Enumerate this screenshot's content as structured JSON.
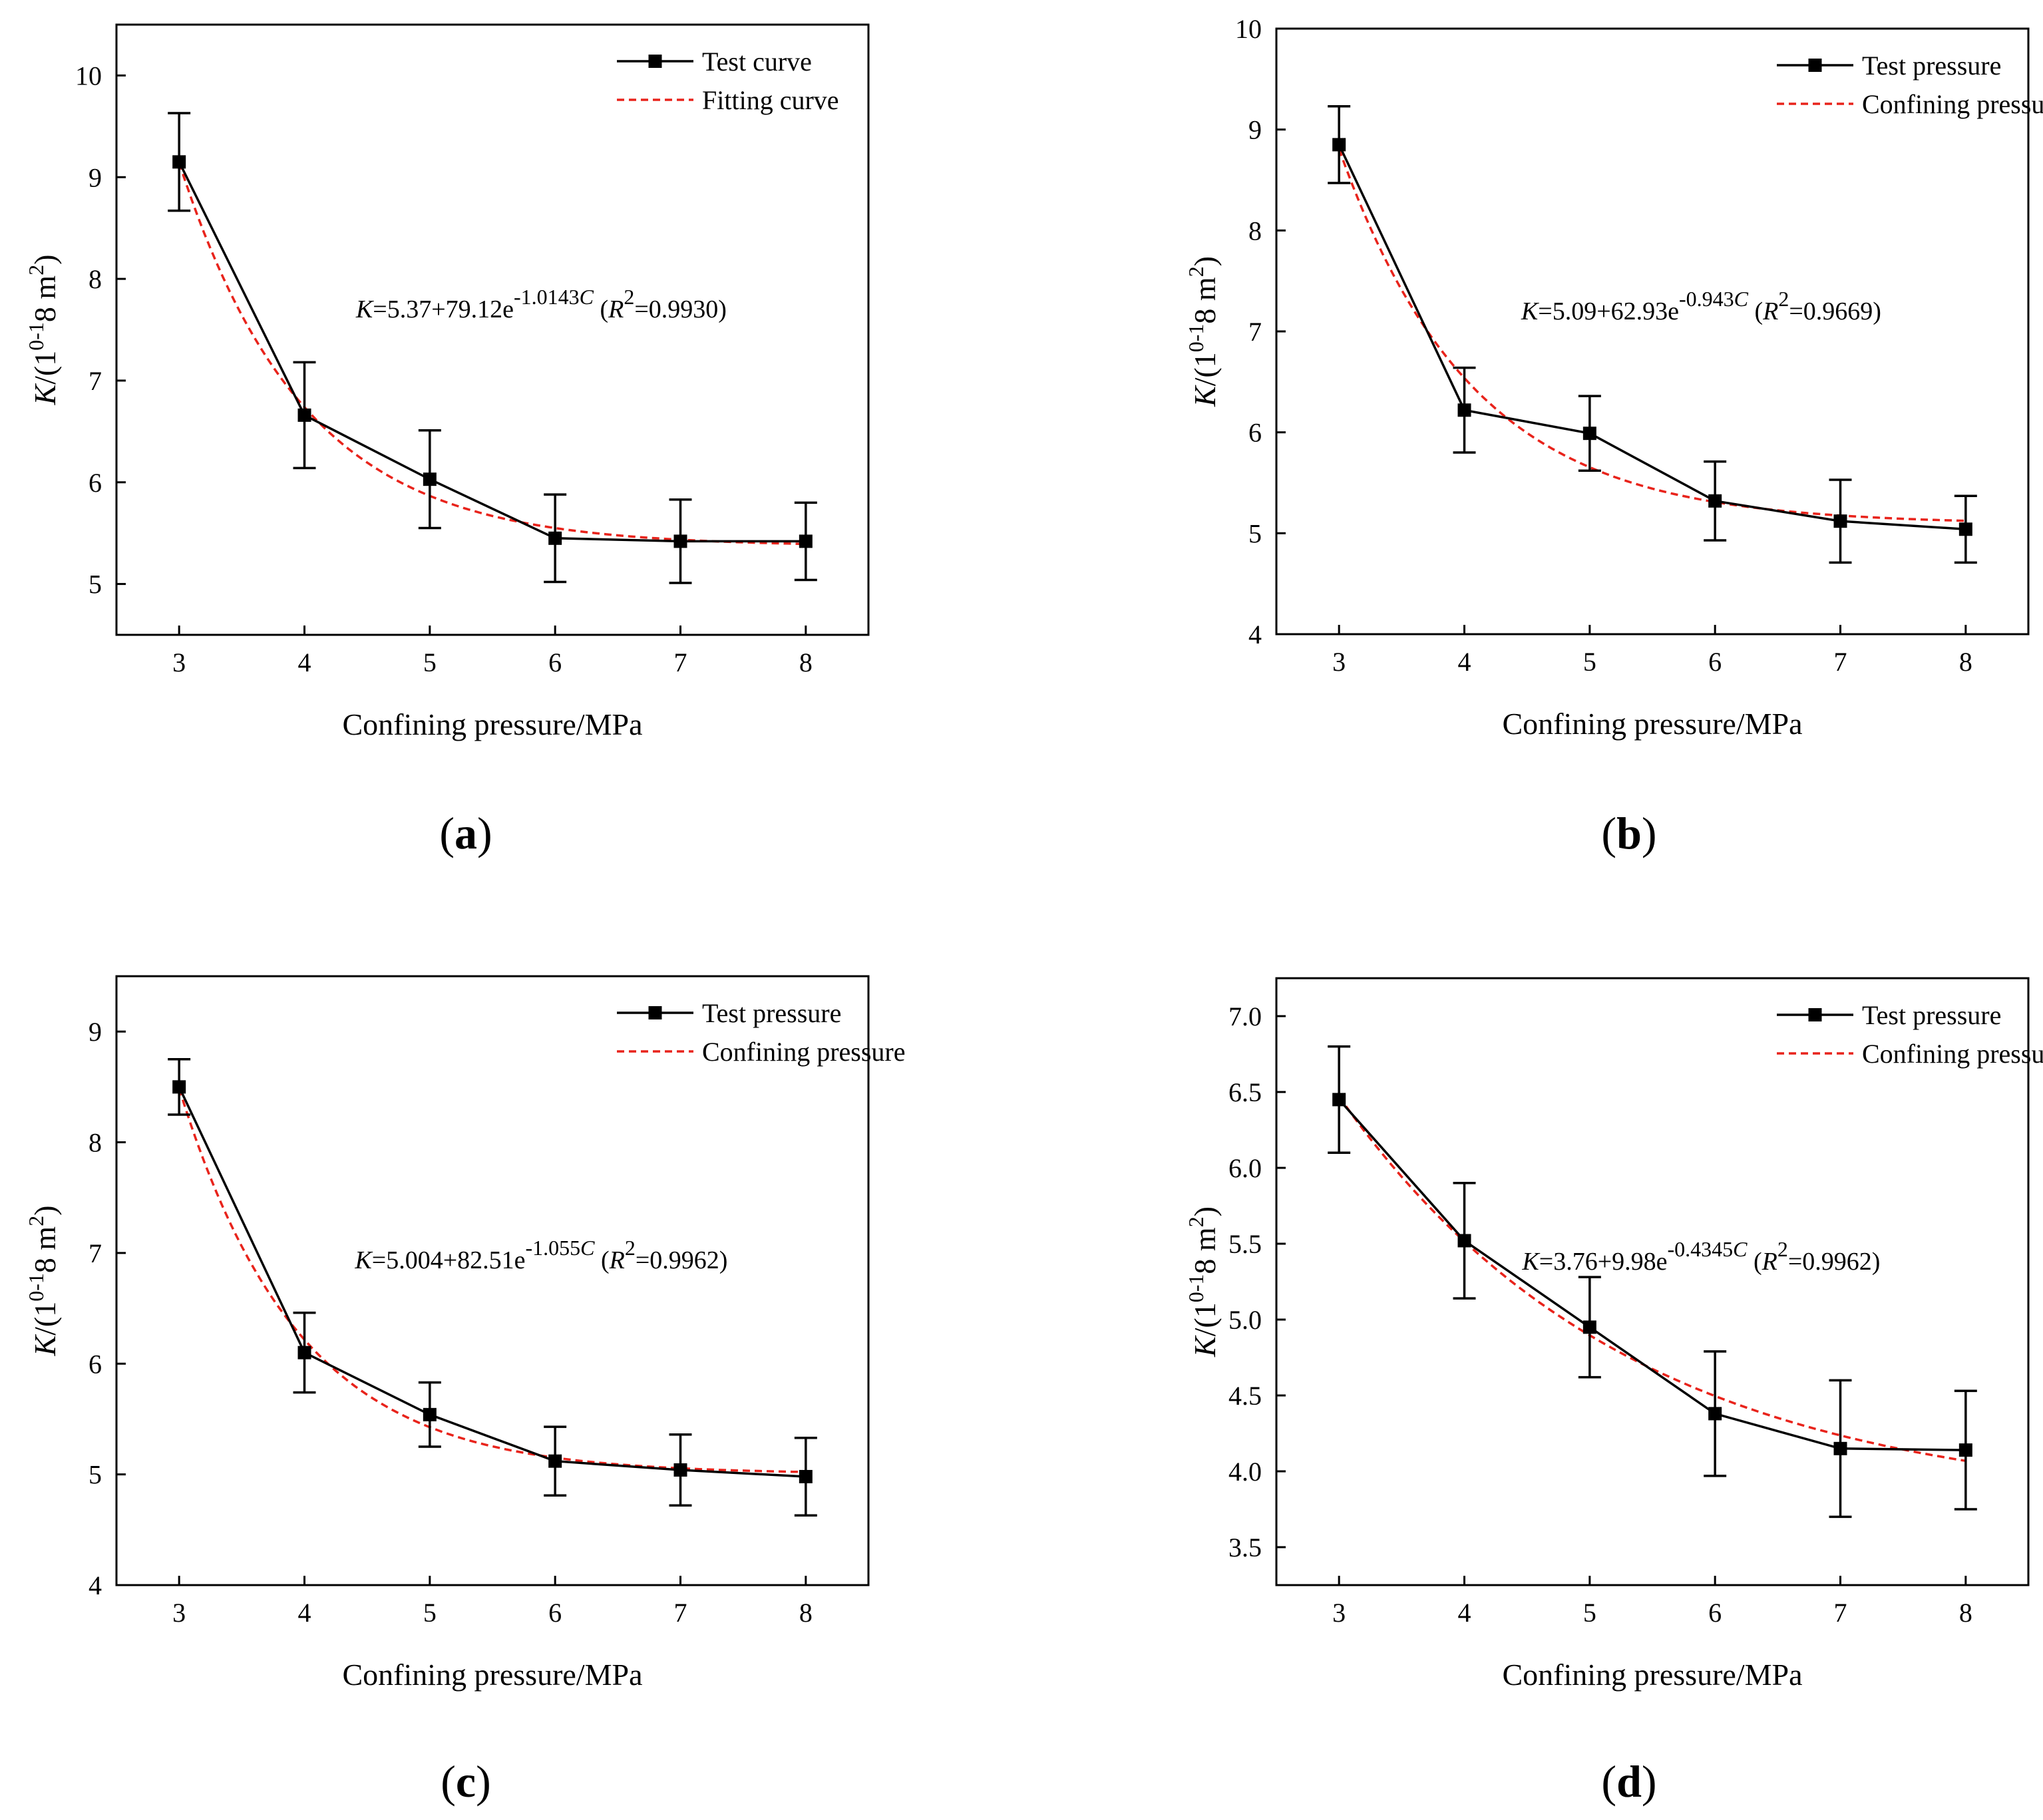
{
  "figure": {
    "xlabel": "Confining pressure/MPa",
    "ylabel": "K/(10-18 m2)",
    "colors": {
      "test": "#000000",
      "fit": "#e8231b",
      "frame": "#000000"
    }
  },
  "chart_data": [
    {
      "type": "line",
      "panel": "a",
      "xlabel": "Confining pressure/MPa",
      "ylabel": "K/(10-18 m2)",
      "xlim": [
        2.5,
        8.5
      ],
      "ylim": [
        4.5,
        10.5
      ],
      "xticks": [
        3,
        4,
        5,
        6,
        7,
        8
      ],
      "yticks": [
        5,
        6,
        7,
        8,
        9,
        10
      ],
      "legend_position": "top-right",
      "series": [
        {
          "name": "Test curve",
          "style": "solid-square-markers",
          "x": [
            3,
            4,
            5,
            6,
            7,
            8
          ],
          "y": [
            9.15,
            6.66,
            6.03,
            5.45,
            5.42,
            5.42
          ],
          "err": [
            0.48,
            0.52,
            0.48,
            0.43,
            0.41,
            0.38
          ]
        },
        {
          "name": "Fitting curve",
          "style": "dashed",
          "equation": {
            "a": 5.37,
            "b": 79.12,
            "c": 1.0143
          },
          "x": [
            3,
            4,
            5,
            6,
            7,
            8
          ],
          "y": [
            9.14,
            6.75,
            5.88,
            5.55,
            5.43,
            5.39
          ]
        }
      ],
      "annotation": {
        "k": "K",
        "lhs": "=5.37+79.12e",
        "exp_lead": "-1.0143",
        "exp_var": "C",
        "r_open": " (",
        "r": "R",
        "r_sup": "2",
        "r_val": "=0.9930)"
      }
    },
    {
      "type": "line",
      "panel": "b",
      "xlabel": "Confining pressure/MPa",
      "ylabel": "K/(10-18 m2)",
      "xlim": [
        2.5,
        8.5
      ],
      "ylim": [
        4,
        10
      ],
      "xticks": [
        3,
        4,
        5,
        6,
        7,
        8
      ],
      "yticks": [
        4,
        5,
        6,
        7,
        8,
        9,
        10
      ],
      "legend_position": "top-right",
      "series": [
        {
          "name": "Test pressure",
          "style": "solid-square-markers",
          "x": [
            3,
            4,
            5,
            6,
            7,
            8
          ],
          "y": [
            8.85,
            6.22,
            5.99,
            5.32,
            5.12,
            5.04
          ],
          "err": [
            0.38,
            0.42,
            0.37,
            0.39,
            0.41,
            0.33
          ]
        },
        {
          "name": "Confining pressure",
          "style": "dashed",
          "equation": {
            "a": 5.09,
            "b": 62.93,
            "c": 0.943
          },
          "x": [
            3,
            4,
            5,
            6,
            7,
            8
          ],
          "y": [
            8.73,
            6.51,
            5.64,
            5.31,
            5.18,
            5.12
          ]
        }
      ],
      "annotation": {
        "k": "K",
        "lhs": "=5.09+62.93e",
        "exp_lead": "-0.943",
        "exp_var": "C",
        "r_open": " (",
        "r": "R",
        "r_sup": "2",
        "r_val": "=0.9669)"
      }
    },
    {
      "type": "line",
      "panel": "c",
      "xlabel": "Confining pressure/MPa",
      "ylabel": "K/(10-18 m2)",
      "xlim": [
        2.5,
        8.5
      ],
      "ylim": [
        4,
        9.5
      ],
      "xticks": [
        3,
        4,
        5,
        6,
        7,
        8
      ],
      "yticks": [
        4,
        5,
        6,
        7,
        8,
        9
      ],
      "legend_position": "top-right",
      "series": [
        {
          "name": "Test pressure",
          "style": "solid-square-markers",
          "x": [
            3,
            4,
            5,
            6,
            7,
            8
          ],
          "y": [
            8.5,
            6.1,
            5.54,
            5.12,
            5.04,
            4.98
          ],
          "err": [
            0.25,
            0.36,
            0.29,
            0.31,
            0.32,
            0.35
          ]
        },
        {
          "name": "Confining pressure",
          "style": "dashed",
          "equation": {
            "a": 5.004,
            "b": 82.51,
            "c": 1.055
          },
          "x": [
            3,
            4,
            5,
            6,
            7,
            8
          ],
          "y": [
            8.47,
            6.2,
            5.43,
            5.15,
            5.06,
            5.02
          ]
        }
      ],
      "annotation": {
        "k": "K",
        "lhs": "=5.004+82.51e",
        "exp_lead": "-1.055",
        "exp_var": "C",
        "r_open": " (",
        "r": "R",
        "r_sup": "2",
        "r_val": "=0.9962)"
      }
    },
    {
      "type": "line",
      "panel": "d",
      "xlabel": "Confining pressure/MPa",
      "ylabel": "K/(10-18 m2)",
      "xlim": [
        2.5,
        8.5
      ],
      "ylim": [
        3.25,
        7.25
      ],
      "xticks": [
        3,
        4,
        5,
        6,
        7,
        8
      ],
      "yticks": [
        3.5,
        4.0,
        4.5,
        5.0,
        5.5,
        6.0,
        6.5,
        7.0
      ],
      "ytick_decimals": 1,
      "legend_position": "top-right",
      "series": [
        {
          "name": "Test pressure",
          "style": "solid-square-markers",
          "x": [
            3,
            4,
            5,
            6,
            7,
            8
          ],
          "y": [
            6.45,
            5.52,
            4.95,
            4.38,
            4.15,
            4.14
          ],
          "err": [
            0.35,
            0.38,
            0.33,
            0.41,
            0.45,
            0.39
          ]
        },
        {
          "name": "Confining pressure",
          "style": "dashed",
          "equation": {
            "a": 3.76,
            "b": 9.98,
            "c": 0.4345
          },
          "x": [
            3,
            4,
            5,
            6,
            7,
            8
          ],
          "y": [
            6.47,
            5.51,
            4.89,
            4.49,
            4.24,
            4.07
          ]
        }
      ],
      "annotation": {
        "k": "K",
        "lhs": "=3.76+9.98e",
        "exp_lead": "-0.4345",
        "exp_var": "C",
        "r_open": " (",
        "r": "R",
        "r_sup": "2",
        "r_val": "=0.9962)"
      }
    }
  ]
}
